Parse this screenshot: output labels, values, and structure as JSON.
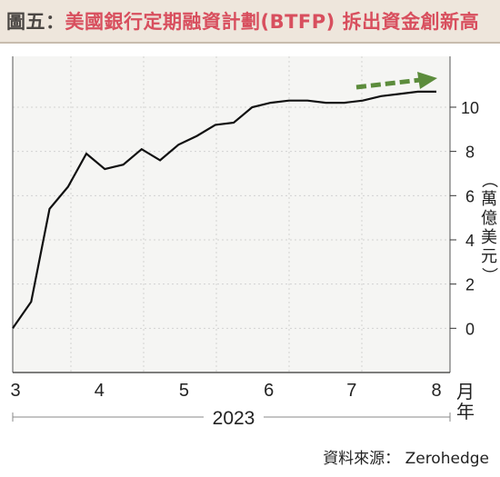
{
  "header": {
    "figure_label": "圖五：",
    "title": "美國銀行定期融資計劃(BTFP) 拆出資金創新高"
  },
  "chart_data": {
    "type": "line",
    "y_unit_label": "（萬億美元）",
    "x_unit_label": "月年",
    "year_label": "2023",
    "x_tick_labels": [
      "3",
      "4",
      "5",
      "6",
      "7",
      "8"
    ],
    "y_ticks": [
      0,
      2,
      4,
      6,
      8,
      10
    ],
    "ylim": [
      -2,
      12.3
    ],
    "xlim": [
      0,
      22.5
    ],
    "month_positions": [
      0.15,
      4.6,
      9.1,
      13.6,
      18.0,
      22.5
    ],
    "series": [
      {
        "x": [
          0,
          1,
          2,
          3,
          4,
          5,
          6,
          7,
          8,
          9,
          10,
          11,
          12,
          13,
          14,
          15,
          16,
          17,
          18,
          19,
          20,
          21,
          22,
          23
        ],
        "y": [
          0,
          1.2,
          5.4,
          6.4,
          7.9,
          7.2,
          7.4,
          8.1,
          7.6,
          8.3,
          8.7,
          9.2,
          9.3,
          10.0,
          10.2,
          10.3,
          10.3,
          10.2,
          10.2,
          10.3,
          10.5,
          10.6,
          10.7,
          10.7
        ]
      }
    ],
    "trend_arrow": {
      "style": "dashed",
      "color": "#5c8c3c",
      "direction": "up-right"
    },
    "grid": "dotted",
    "background": "#f5f5f3"
  },
  "footer": {
    "source": "資料來源： Zerohedge"
  }
}
